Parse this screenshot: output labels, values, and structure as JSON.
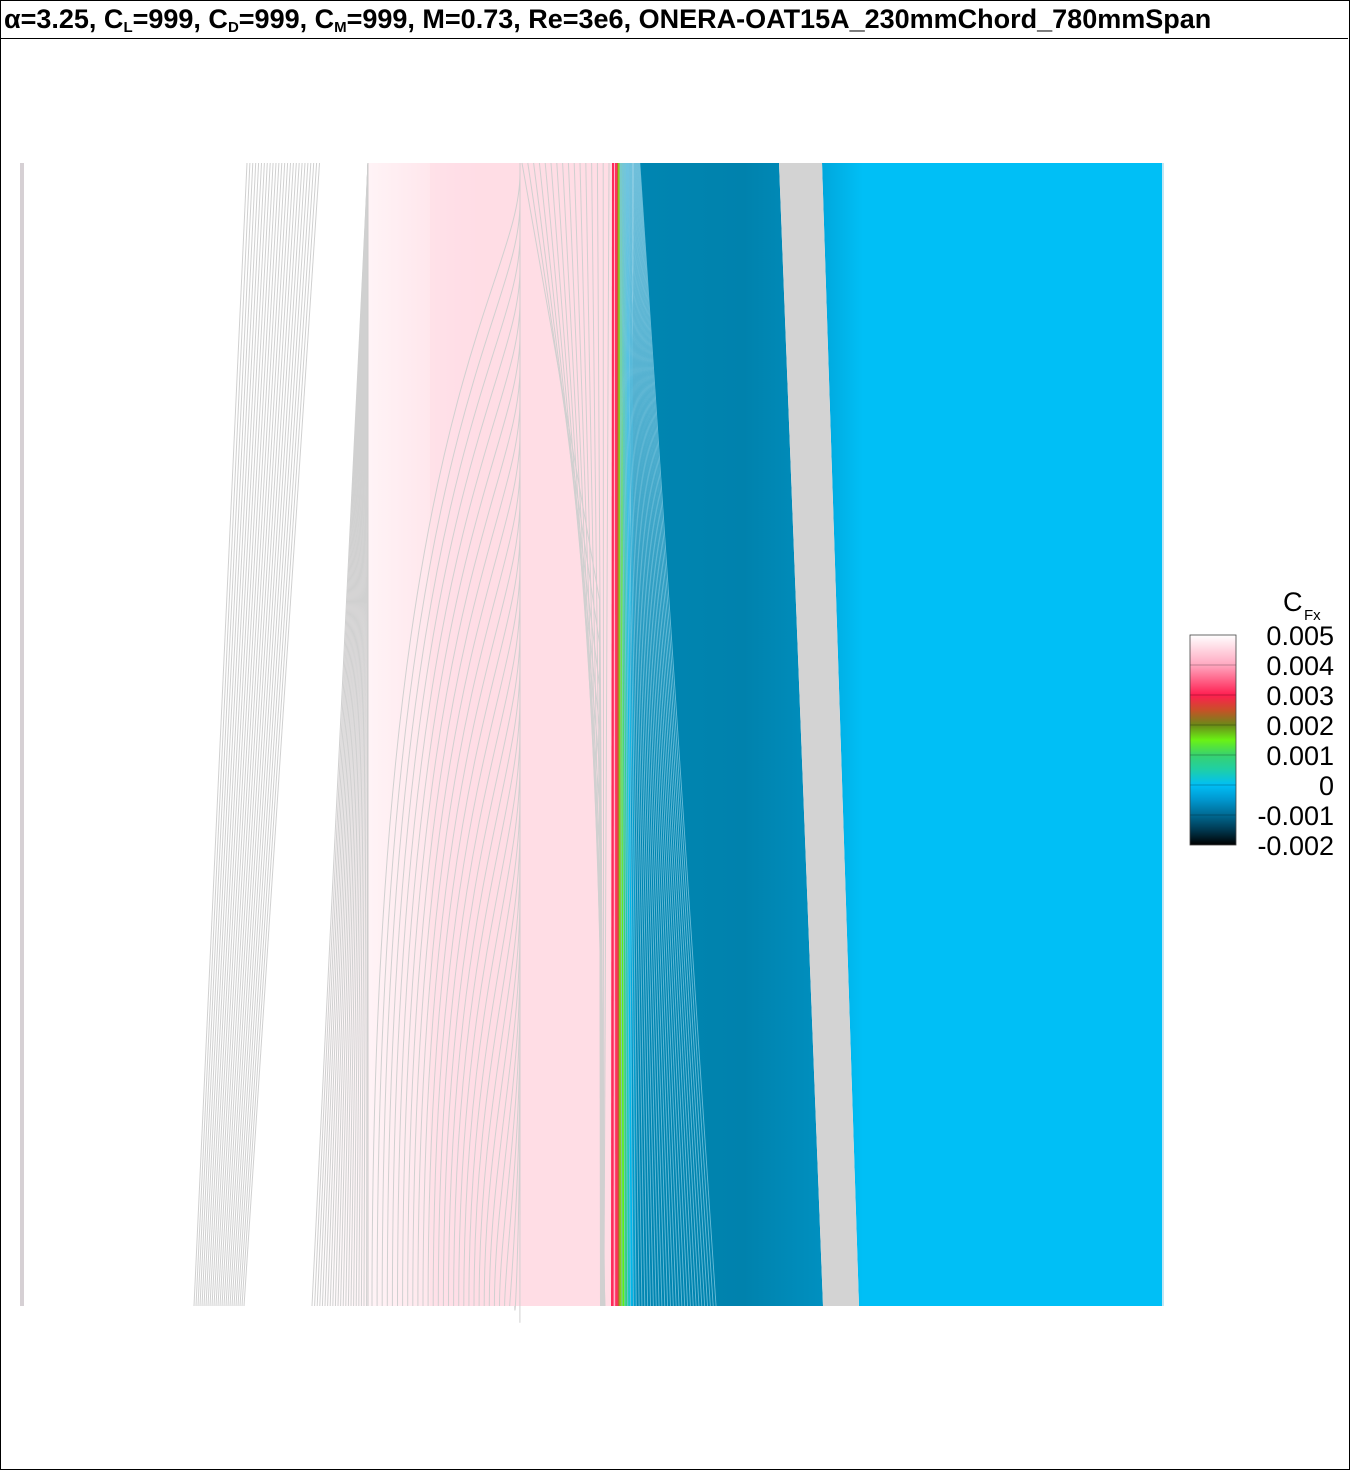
{
  "header": {
    "alpha_symbol": "α",
    "alpha_value": "=3.25, C",
    "cl_sub": "L",
    "cl_value": "=999, C",
    "cd_sub": "D",
    "cd_value": "=999, C",
    "cm_sub": "M",
    "cm_value": "=999, M=0.73, Re=3e6, ONERA-OAT15A_230mmChord_780mmSpan"
  },
  "chart_data": {
    "type": "heatmap",
    "title": "α=3.25, CL=999, CD=999, CM=999, M=0.73, Re=3e6, ONERA-OAT15A_230mmChord_780mmSpan",
    "colorbar": {
      "label_main": "C",
      "label_sub": "Fx",
      "ticks": [
        "0.005",
        "0.004",
        "0.003",
        "0.002",
        "0.001",
        "0",
        "-0.001",
        "-0.002"
      ],
      "range": [
        -0.002,
        0.005
      ],
      "stops": [
        {
          "value": 0.005,
          "color": "#ffffff"
        },
        {
          "value": 0.004,
          "color": "#ffa8c0"
        },
        {
          "value": 0.003,
          "color": "#ff1e50"
        },
        {
          "value": 0.0025,
          "color": "#c85028"
        },
        {
          "value": 0.002,
          "color": "#6a8a18"
        },
        {
          "value": 0.0015,
          "color": "#6af214"
        },
        {
          "value": 0.001,
          "color": "#38d26e"
        },
        {
          "value": 0.0005,
          "color": "#1ecfa8"
        },
        {
          "value": 0.0,
          "color": "#00bff6"
        },
        {
          "value": -0.0005,
          "color": "#0096ce"
        },
        {
          "value": -0.001,
          "color": "#006a93"
        },
        {
          "value": -0.0015,
          "color": "#003850"
        },
        {
          "value": -0.002,
          "color": "#000000"
        }
      ]
    },
    "colors": {
      "contour_line": "#d0d0d0",
      "grey_band": "#d3d3d3",
      "pink_field": "#ffdde5",
      "dark_blue_field": "#0082ad",
      "light_blue_field": "#00bff6",
      "left_strip": "#d6d0d4"
    }
  }
}
